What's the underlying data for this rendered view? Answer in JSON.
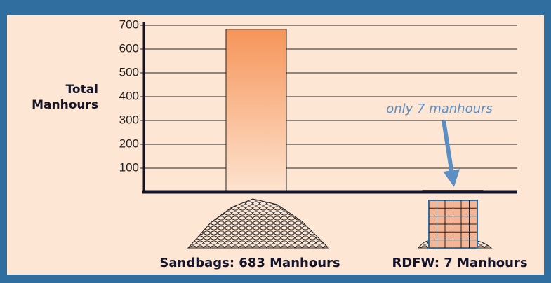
{
  "chart_data": {
    "type": "bar",
    "ylabel_lines": [
      "Total",
      "Manhours"
    ],
    "categories": [
      "Sandbags: 683 Manhours",
      "RDFW: 7 Manhours"
    ],
    "values": [
      683,
      7
    ],
    "color": "#f6955a",
    "ylim": [
      0,
      700
    ],
    "yticks": [
      100,
      200,
      300,
      400,
      500,
      600,
      700
    ],
    "grid": true,
    "annotation": "only 7 manhours"
  }
}
